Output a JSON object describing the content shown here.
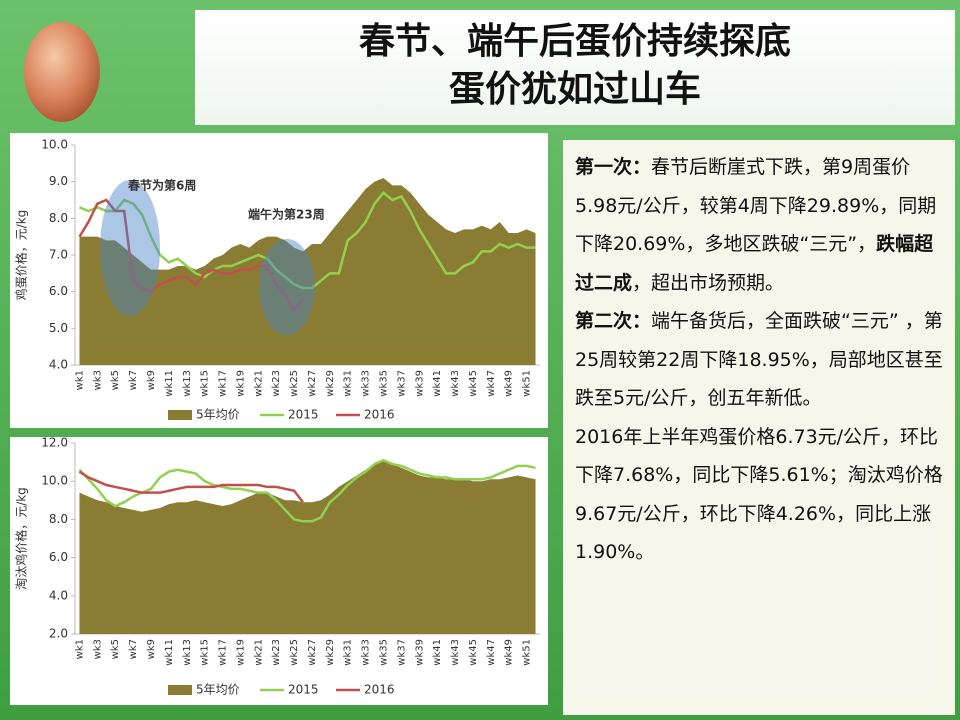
{
  "title": [
    "春节、端午后蛋价持续探底",
    "蛋价犹如过山车"
  ],
  "panel": {
    "paragraphs": [
      {
        "runs": [
          {
            "text": "第一次：",
            "bold": true
          },
          {
            "text": "春节后断崖式下跌，第9周蛋价5.98元/公斤，较第4周下降29.89%，同期下降20.69%，多地区跌破“三元”，"
          },
          {
            "text": "跌幅超过二成",
            "bold": true
          },
          {
            "text": "，超出市场预期。"
          }
        ]
      },
      {
        "runs": [
          {
            "text": "第二次：",
            "bold": true
          },
          {
            "text": "端午备货后，全面跌破“三元” ，第25周较第22周下降18.95%，局部地区甚至跌至5元/公斤，创五年新低。"
          }
        ]
      },
      {
        "runs": [
          {
            "text": "2016年上半年鸡蛋价格6.73元/公斤，环比下降7.68%，同比下降5.61%；淘汰鸡价格9.67元/公斤，环比下降4.26%，同比上涨1.90%。"
          }
        ]
      }
    ]
  },
  "chart_data": [
    {
      "type": "line",
      "y_label": "鸡蛋价格，元/kg",
      "annotations": [
        "春节为第6周",
        "端午为第23周"
      ],
      "categories": [
        "wk1",
        null,
        "wk3",
        null,
        "wk5",
        null,
        "wk7",
        null,
        "wk9",
        null,
        "wk11",
        null,
        "wk13",
        null,
        "wk15",
        null,
        "wk17",
        null,
        "wk19",
        null,
        "wk21",
        null,
        "wk23",
        null,
        "wk25",
        null,
        "wk27",
        null,
        "wk29",
        null,
        "wk31",
        null,
        "wk33",
        null,
        "wk35",
        null,
        "wk37",
        null,
        "wk39",
        null,
        "wk41",
        null,
        "wk43",
        null,
        "wk45",
        null,
        "wk47",
        null,
        "wk49",
        null,
        "wk51",
        null
      ],
      "ylim": [
        4,
        10
      ],
      "yticks": [
        {
          "value": 4,
          "label": "4.0"
        },
        {
          "value": 5,
          "label": "5.0"
        },
        {
          "value": 6,
          "label": "6.0"
        },
        {
          "value": 7,
          "label": "7.0"
        },
        {
          "value": 8,
          "label": "8.0"
        },
        {
          "value": 9,
          "label": "9.0"
        },
        {
          "value": 10,
          "label": "10.0"
        }
      ],
      "series": [
        {
          "name": "5年均价",
          "style": "area",
          "color": "#8a7c32",
          "values": [
            7.5,
            7.5,
            7.5,
            7.4,
            7.4,
            7.2,
            7.0,
            6.8,
            6.6,
            6.6,
            6.6,
            6.7,
            6.7,
            6.6,
            6.7,
            6.9,
            7.0,
            7.2,
            7.3,
            7.2,
            7.4,
            7.5,
            7.5,
            7.4,
            7.2,
            7.1,
            7.3,
            7.3,
            7.6,
            7.9,
            8.2,
            8.5,
            8.8,
            9.0,
            9.1,
            8.9,
            8.9,
            8.7,
            8.4,
            8.1,
            7.9,
            7.7,
            7.6,
            7.7,
            7.7,
            7.8,
            7.7,
            7.9,
            7.6,
            7.6,
            7.7,
            7.6
          ]
        },
        {
          "name": "2015",
          "style": "line",
          "color": "#92d050",
          "values": [
            8.3,
            8.2,
            8.3,
            8.2,
            8.2,
            8.5,
            8.4,
            8.1,
            7.5,
            7.0,
            6.8,
            6.9,
            6.7,
            6.5,
            6.4,
            6.6,
            6.7,
            6.7,
            6.8,
            6.9,
            7.0,
            6.9,
            6.6,
            6.4,
            6.2,
            6.1,
            6.1,
            6.3,
            6.5,
            6.5,
            7.4,
            7.6,
            7.9,
            8.4,
            8.7,
            8.5,
            8.6,
            8.2,
            7.7,
            7.3,
            6.9,
            6.5,
            6.5,
            6.7,
            6.8,
            7.1,
            7.1,
            7.3,
            7.2,
            7.3,
            7.2,
            7.2
          ]
        },
        {
          "name": "2016",
          "style": "line",
          "color": "#c0504d",
          "values": [
            7.5,
            7.9,
            8.4,
            8.5,
            8.2,
            8.2,
            6.3,
            6.1,
            6.0,
            6.2,
            6.3,
            6.4,
            6.4,
            6.2,
            6.5,
            6.6,
            6.5,
            6.5,
            6.6,
            6.6,
            6.7,
            6.7,
            6.2,
            5.9,
            5.5,
            5.8,
            null,
            null,
            null,
            null,
            null,
            null,
            null,
            null,
            null,
            null,
            null,
            null,
            null,
            null,
            null,
            null,
            null,
            null,
            null,
            null,
            null,
            null,
            null,
            null,
            null,
            null
          ]
        }
      ]
    },
    {
      "type": "line",
      "y_label": "淘汰鸡价格，元/kg",
      "categories": [
        "wk1",
        null,
        "wk3",
        null,
        "wk5",
        null,
        "wk7",
        null,
        "wk9",
        null,
        "wk11",
        null,
        "wk13",
        null,
        "wk15",
        null,
        "wk17",
        null,
        "wk19",
        null,
        "wk21",
        null,
        "wk23",
        null,
        "wk25",
        null,
        "wk27",
        null,
        "wk29",
        null,
        "wk31",
        null,
        "wk33",
        null,
        "wk35",
        null,
        "wk37",
        null,
        "wk39",
        null,
        "wk41",
        null,
        "wk43",
        null,
        "wk45",
        null,
        "wk47",
        null,
        "wk49",
        null,
        "wk51",
        null
      ],
      "ylim": [
        2,
        12
      ],
      "yticks": [
        {
          "value": 2,
          "label": "2.0"
        },
        {
          "value": 4,
          "label": "4.0"
        },
        {
          "value": 6,
          "label": "6.0"
        },
        {
          "value": 8,
          "label": "8.0"
        },
        {
          "value": 10,
          "label": "10.0"
        },
        {
          "value": 12,
          "label": "12.0"
        }
      ],
      "series": [
        {
          "name": "5年均价",
          "style": "area",
          "color": "#8a7c32",
          "values": [
            9.4,
            9.2,
            9.0,
            8.9,
            8.7,
            8.6,
            8.5,
            8.4,
            8.5,
            8.6,
            8.8,
            8.9,
            8.9,
            9.0,
            8.9,
            8.8,
            8.7,
            8.8,
            9.0,
            9.2,
            9.4,
            9.4,
            9.2,
            9.0,
            9.0,
            8.9,
            8.9,
            9.0,
            9.3,
            9.7,
            10.0,
            10.3,
            10.6,
            10.9,
            11.1,
            10.9,
            10.7,
            10.5,
            10.3,
            10.2,
            10.2,
            10.1,
            10.1,
            10.1,
            10.0,
            10.0,
            10.1,
            10.1,
            10.2,
            10.3,
            10.2,
            10.1
          ]
        },
        {
          "name": "2015",
          "style": "line",
          "color": "#92d050",
          "values": [
            10.6,
            10.1,
            9.6,
            9.0,
            8.7,
            8.9,
            9.2,
            9.4,
            9.6,
            10.2,
            10.5,
            10.6,
            10.5,
            10.4,
            10.0,
            9.8,
            9.7,
            9.6,
            9.6,
            9.5,
            9.4,
            9.4,
            9.0,
            8.5,
            8.0,
            7.9,
            7.9,
            8.1,
            8.9,
            9.3,
            9.8,
            10.2,
            10.5,
            10.9,
            11.1,
            10.9,
            10.8,
            10.6,
            10.4,
            10.3,
            10.2,
            10.2,
            10.1,
            10.1,
            10.1,
            10.1,
            10.2,
            10.4,
            10.6,
            10.8,
            10.8,
            10.7
          ]
        },
        {
          "name": "2016",
          "style": "line",
          "color": "#c0504d",
          "values": [
            10.5,
            10.2,
            10.0,
            9.8,
            9.7,
            9.6,
            9.5,
            9.4,
            9.4,
            9.4,
            9.5,
            9.6,
            9.7,
            9.7,
            9.7,
            9.7,
            9.8,
            9.8,
            9.8,
            9.8,
            9.8,
            9.7,
            9.7,
            9.6,
            9.5,
            8.9,
            null,
            null,
            null,
            null,
            null,
            null,
            null,
            null,
            null,
            null,
            null,
            null,
            null,
            null,
            null,
            null,
            null,
            null,
            null,
            null,
            null,
            null,
            null,
            null,
            null,
            null
          ]
        }
      ]
    }
  ]
}
